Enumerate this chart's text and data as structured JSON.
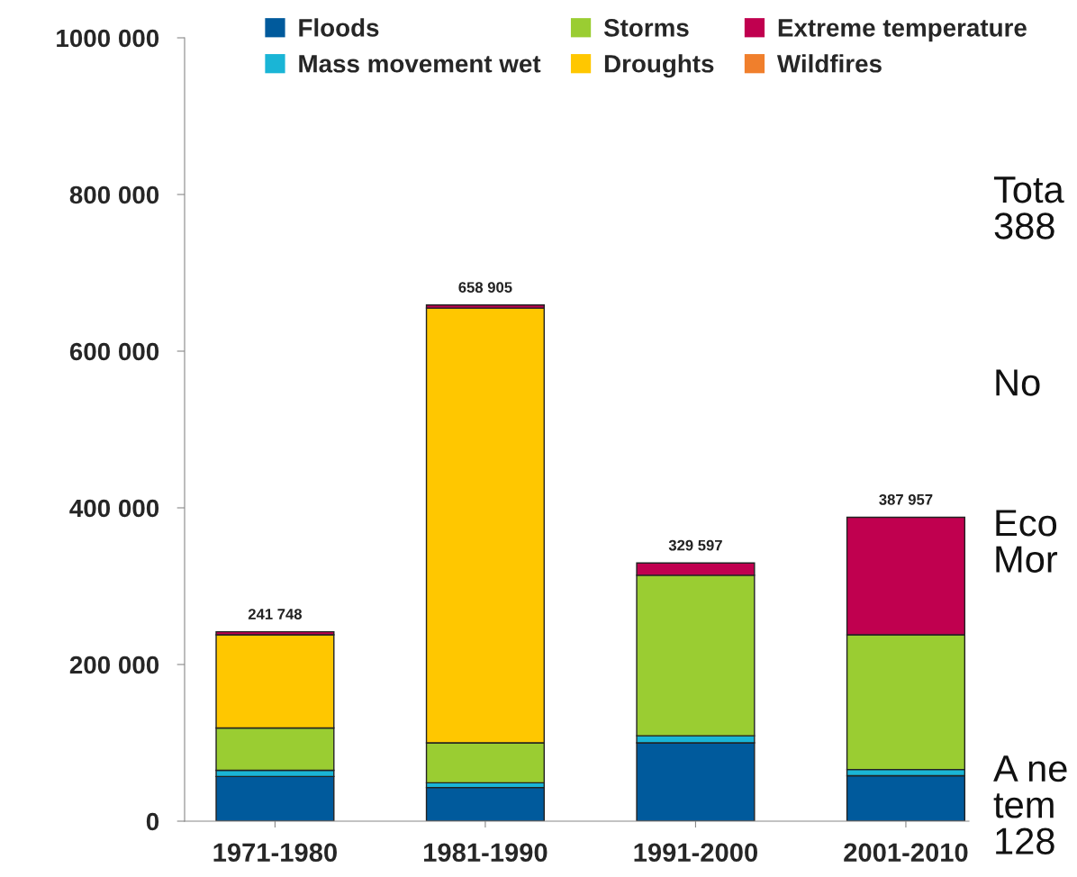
{
  "chart_data": {
    "type": "bar",
    "stacked": true,
    "categories": [
      "1971-1980",
      "1981-1990",
      "1991-2000",
      "2001-2010"
    ],
    "series": [
      {
        "name": "Floods",
        "color": "#005a9c",
        "values": [
          57000,
          43000,
          100000,
          58000
        ]
      },
      {
        "name": "Mass movement wet",
        "color": "#1ab5d6",
        "values": [
          8000,
          6000,
          9000,
          8000
        ]
      },
      {
        "name": "Storms",
        "color": "#9acd32",
        "values": [
          54000,
          51000,
          205000,
          172000
        ]
      },
      {
        "name": "Droughts",
        "color": "#ffc700",
        "values": [
          119000,
          555000,
          null,
          null
        ]
      },
      {
        "name": "Extreme temperature",
        "color": "#c0004f",
        "values": [
          3748,
          3905,
          15597,
          149957
        ]
      },
      {
        "name": "Wildfires",
        "color": "#f07f2c",
        "values": [
          null,
          null,
          null,
          null
        ]
      }
    ],
    "totals": [
      "241 748",
      "658 905",
      "329 597",
      "387 957"
    ],
    "ylim": [
      0,
      1000000
    ],
    "yticks": [
      {
        "value": 0,
        "label": "0"
      },
      {
        "value": 200000,
        "label": "200 000"
      },
      {
        "value": 400000,
        "label": "400 000"
      },
      {
        "value": 600000,
        "label": "600 000"
      },
      {
        "value": 800000,
        "label": "800 000"
      },
      {
        "value": 1000000,
        "label": "1000 000"
      }
    ],
    "grid": false,
    "legend": "top",
    "annotations": [
      "Tota\n388",
      "No",
      "Eco\nMor",
      "A ne\ntem\n128"
    ]
  }
}
